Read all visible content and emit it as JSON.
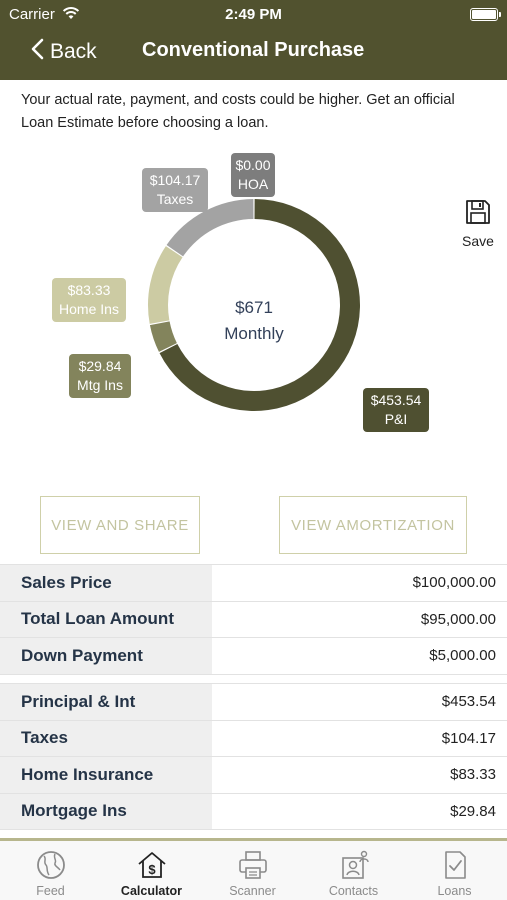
{
  "status_bar": {
    "carrier": "Carrier",
    "time": "2:49 PM"
  },
  "nav": {
    "back_label": "Back",
    "title": "Conventional Purchase"
  },
  "disclaimer": "Your actual rate, payment, and costs could be higher. Get an official Loan Estimate before choosing a loan.",
  "chart_data": {
    "type": "pie",
    "center_value": "$671",
    "center_label": "Monthly",
    "slices": [
      {
        "name": "P&I",
        "value": 453.54,
        "label": "$453.54",
        "color": "#4f5031"
      },
      {
        "name": "Mtg Ins",
        "value": 29.84,
        "label": "$29.84",
        "color": "#83845c"
      },
      {
        "name": "Home Ins",
        "value": 83.33,
        "label": "$83.33",
        "color": "#cccba3"
      },
      {
        "name": "Taxes",
        "value": 104.17,
        "label": "$104.17",
        "color": "#a3a3a3"
      },
      {
        "name": "HOA",
        "value": 0.0,
        "label": "$0.00",
        "color": "#7d7d7d"
      }
    ]
  },
  "save": {
    "label": "Save",
    "icon": "floppy-disk-icon"
  },
  "buttons": {
    "view_share": "VIEW AND SHARE",
    "view_amortization": "VIEW AMORTIZATION"
  },
  "summary": [
    {
      "label": "Sales Price",
      "value": "$100,000.00"
    },
    {
      "label": "Total Loan Amount",
      "value": "$95,000.00"
    },
    {
      "label": "Down Payment",
      "value": "$5,000.00"
    }
  ],
  "breakdown": [
    {
      "label": "Principal & Int",
      "value": "$453.54"
    },
    {
      "label": "Taxes",
      "value": "$104.17"
    },
    {
      "label": "Home Insurance",
      "value": "$83.33"
    },
    {
      "label": "Mortgage Ins",
      "value": "$29.84"
    }
  ],
  "tabs": [
    {
      "label": "Feed",
      "icon": "globe-icon"
    },
    {
      "label": "Calculator",
      "icon": "calculator-house-icon",
      "active": true
    },
    {
      "label": "Scanner",
      "icon": "printer-icon"
    },
    {
      "label": "Contacts",
      "icon": "contacts-icon"
    },
    {
      "label": "Loans",
      "icon": "document-check-icon"
    }
  ]
}
